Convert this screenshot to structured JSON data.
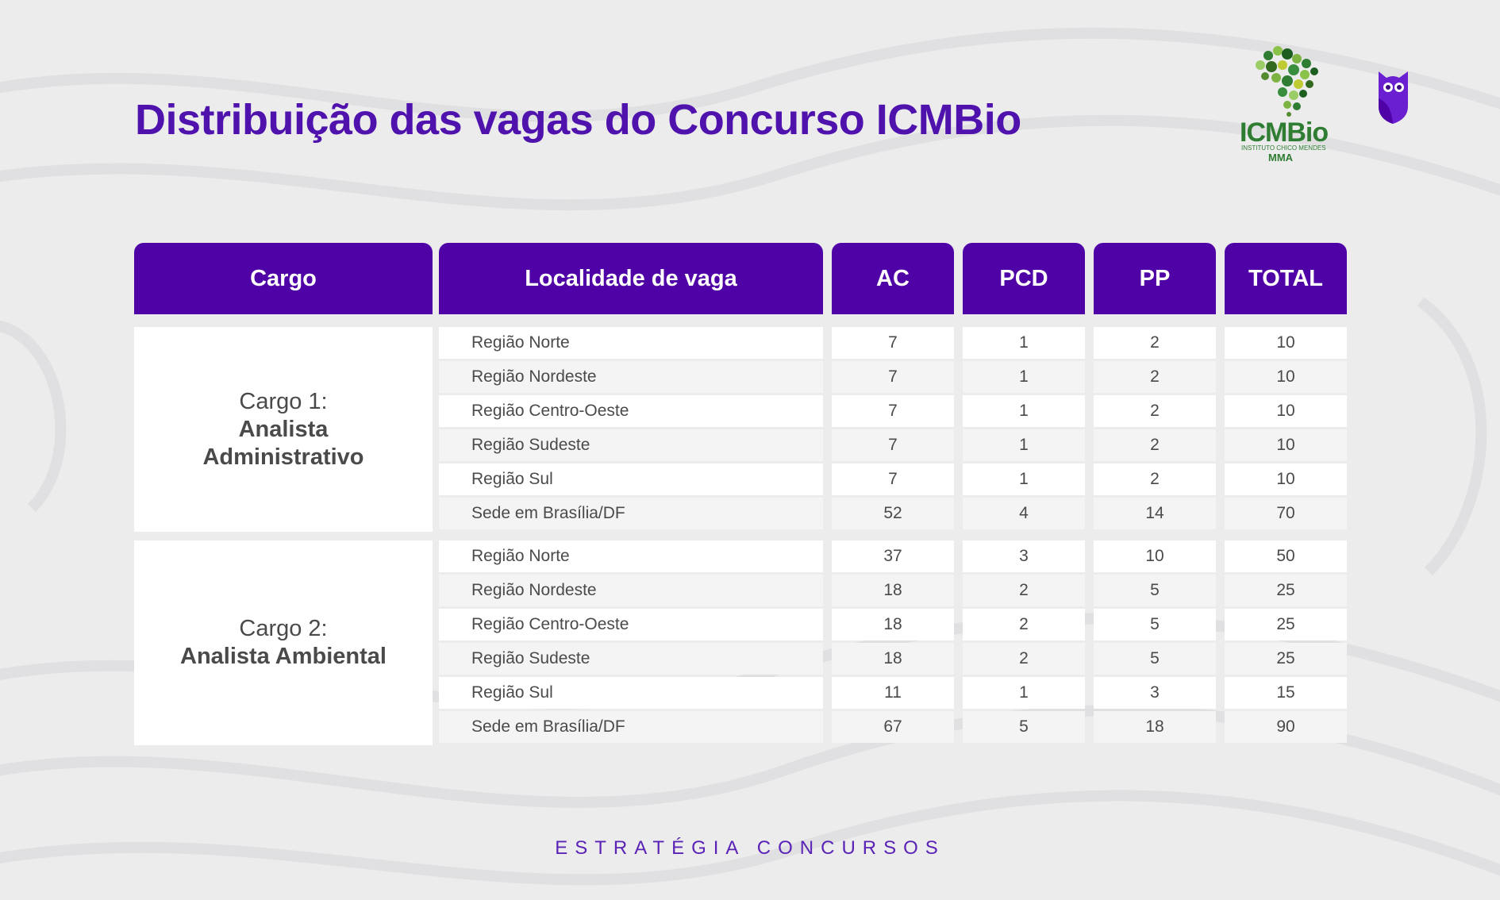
{
  "title": "Distribuição das vagas do Concurso ICMBio",
  "logos": {
    "icmbio": {
      "main_text": "ICMBio",
      "sub_text": "INSTITUTO CHICO MENDES",
      "agency_text": "MMA",
      "icon": "brazil-map-leaves-icon"
    },
    "owl_icon": "owl-icon"
  },
  "colors": {
    "accent": "#4f03a6",
    "title": "#4f12ad",
    "icmbio_green": "#2e7d32"
  },
  "table": {
    "headers": [
      "Cargo",
      "Localidade de vaga",
      "AC",
      "PCD",
      "PP",
      "TOTAL"
    ],
    "groups": [
      {
        "cargo_label": "Cargo 1:",
        "cargo_name": "Analista Administrativo",
        "rows": [
          {
            "localidade": "Região Norte",
            "ac": "7",
            "pcd": "1",
            "pp": "2",
            "total": "10"
          },
          {
            "localidade": "Região Nordeste",
            "ac": "7",
            "pcd": "1",
            "pp": "2",
            "total": "10"
          },
          {
            "localidade": "Região Centro-Oeste",
            "ac": "7",
            "pcd": "1",
            "pp": "2",
            "total": "10"
          },
          {
            "localidade": "Região Sudeste",
            "ac": "7",
            "pcd": "1",
            "pp": "2",
            "total": "10"
          },
          {
            "localidade": "Região Sul",
            "ac": "7",
            "pcd": "1",
            "pp": "2",
            "total": "10"
          },
          {
            "localidade": "Sede em Brasília/DF",
            "ac": "52",
            "pcd": "4",
            "pp": "14",
            "total": "70"
          }
        ]
      },
      {
        "cargo_label": "Cargo 2:",
        "cargo_name": "Analista Ambiental",
        "rows": [
          {
            "localidade": "Região Norte",
            "ac": "37",
            "pcd": "3",
            "pp": "10",
            "total": "50"
          },
          {
            "localidade": "Região Nordeste",
            "ac": "18",
            "pcd": "2",
            "pp": "5",
            "total": "25"
          },
          {
            "localidade": "Região Centro-Oeste",
            "ac": "18",
            "pcd": "2",
            "pp": "5",
            "total": "25"
          },
          {
            "localidade": "Região Sudeste",
            "ac": "18",
            "pcd": "2",
            "pp": "5",
            "total": "25"
          },
          {
            "localidade": "Região Sul",
            "ac": "11",
            "pcd": "1",
            "pp": "3",
            "total": "15"
          },
          {
            "localidade": "Sede em Brasília/DF",
            "ac": "67",
            "pcd": "5",
            "pp": "18",
            "total": "90"
          }
        ]
      }
    ]
  },
  "footer": "ESTRATÉGIA CONCURSOS"
}
